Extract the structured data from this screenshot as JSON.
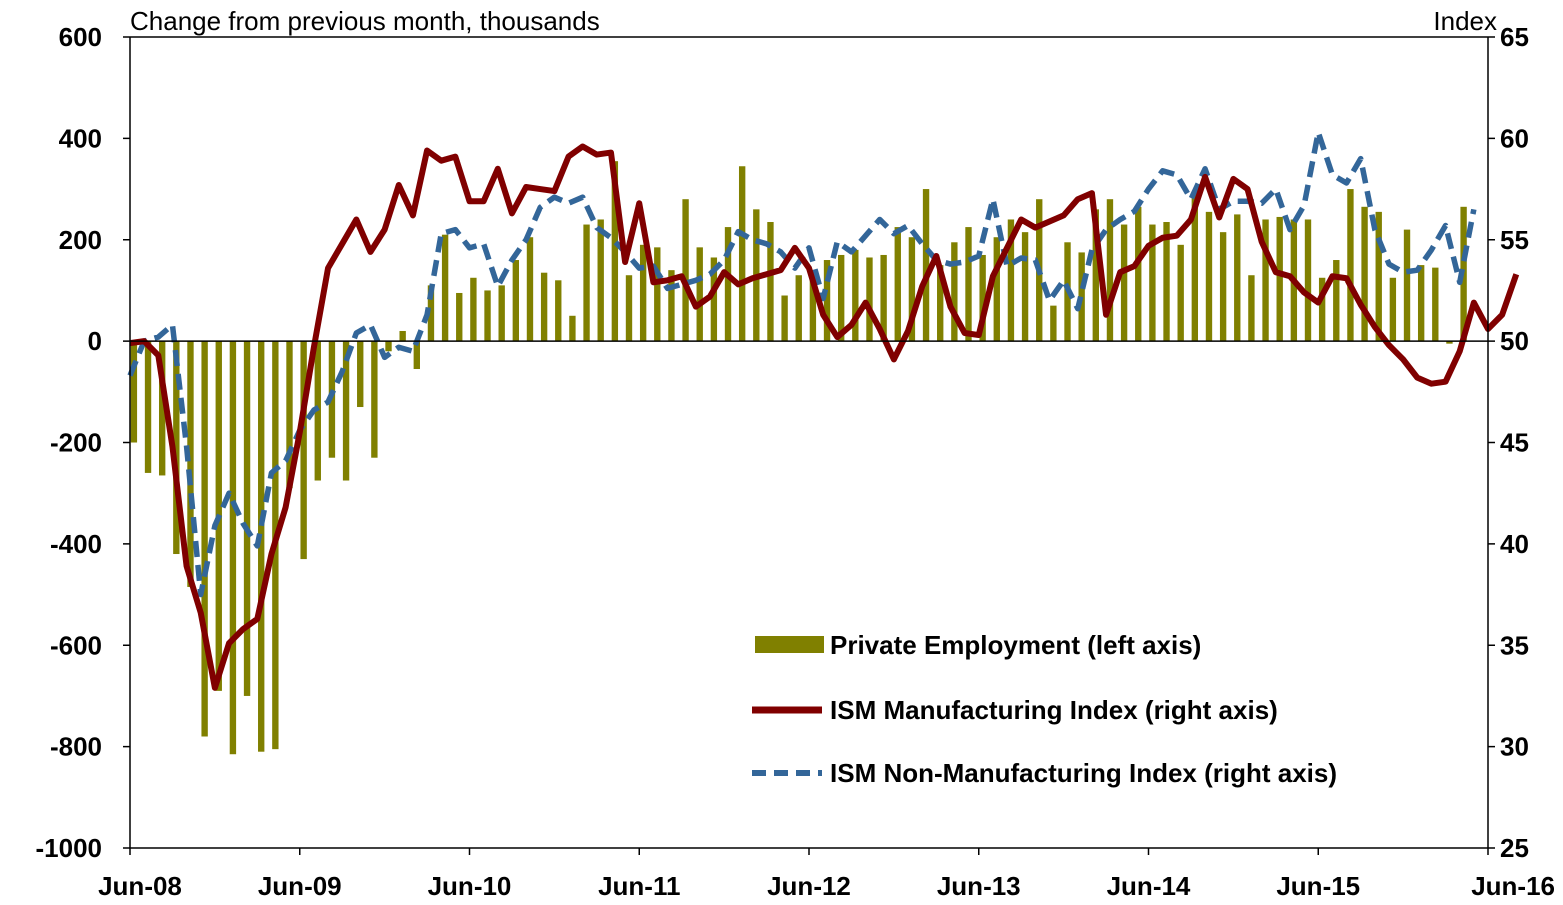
{
  "chart_data": {
    "type": "bar+line",
    "left_axis_label": "Change from previous month, thousands",
    "right_axis_label": "Index",
    "left_ylim": [
      -1000,
      600
    ],
    "right_ylim": [
      25,
      65
    ],
    "left_ticks": [
      "600",
      "400",
      "200",
      "0",
      "-200",
      "-400",
      "-600",
      "-800",
      "-1000"
    ],
    "right_ticks": [
      "65",
      "60",
      "55",
      "50",
      "45",
      "40",
      "35",
      "30",
      "25"
    ],
    "x_ticks": [
      "Jun-08",
      "Jun-09",
      "Jun-10",
      "Jun-11",
      "Jun-12",
      "Jun-13",
      "Jun-14",
      "Jun-15",
      "Jun-16"
    ],
    "grid": false,
    "legend_position": "bottom-right",
    "series": [
      {
        "name": "Private Employment (left axis)",
        "type": "bar",
        "axis": "left",
        "color": "#808000",
        "values": [
          -200,
          -260,
          -265,
          -420,
          -485,
          -780,
          -690,
          -815,
          -700,
          -810,
          -805,
          -290,
          -430,
          -275,
          -230,
          -275,
          -130,
          -230,
          -20,
          20,
          -55,
          110,
          210,
          95,
          125,
          100,
          110,
          160,
          205,
          135,
          120,
          50,
          230,
          240,
          355,
          130,
          190,
          185,
          140,
          280,
          185,
          165,
          225,
          345,
          260,
          235,
          90,
          130,
          130,
          160,
          170,
          180,
          165,
          170,
          225,
          205,
          300,
          150,
          195,
          225,
          170,
          205,
          240,
          215,
          280,
          70,
          195,
          175,
          260,
          280,
          230,
          265,
          230,
          235,
          190,
          290,
          255,
          215,
          250,
          130,
          240,
          245,
          240,
          240,
          125,
          160,
          300,
          265,
          255,
          125,
          220,
          150,
          145,
          -5,
          265
        ],
        "color_hint": "olive"
      },
      {
        "name": "ISM Manufacturing Index (right axis)",
        "type": "line",
        "axis": "right",
        "color": "#800000",
        "values": [
          49.9,
          50.0,
          49.3,
          44.8,
          38.9,
          36.6,
          32.9,
          35.1,
          35.8,
          36.3,
          39.5,
          41.8,
          45.5,
          49.7,
          53.6,
          54.8,
          56.0,
          54.4,
          55.5,
          57.7,
          56.2,
          59.4,
          58.9,
          59.1,
          56.9,
          56.9,
          58.5,
          56.3,
          57.6,
          57.5,
          57.4,
          59.1,
          59.6,
          59.2,
          59.3,
          53.9,
          56.8,
          52.9,
          53.0,
          53.2,
          51.7,
          52.2,
          53.4,
          52.8,
          53.1,
          53.3,
          53.5,
          54.6,
          53.6,
          51.3,
          50.2,
          50.8,
          51.9,
          50.6,
          49.1,
          50.5,
          52.7,
          54.2,
          51.7,
          50.4,
          50.3,
          53.2,
          54.6,
          56.0,
          55.6,
          55.9,
          56.2,
          57.0,
          57.3,
          51.3,
          53.4,
          53.7,
          54.7,
          55.1,
          55.2,
          56.0,
          58.1,
          56.1,
          58.0,
          57.5,
          54.9,
          53.4,
          53.2,
          52.4,
          51.9,
          53.2,
          53.1,
          51.8,
          50.7,
          49.8,
          49.1,
          48.2,
          47.9,
          48.0,
          49.5,
          51.9,
          50.6,
          51.3,
          53.3
        ],
        "style": "solid"
      },
      {
        "name": "ISM Non-Manufacturing Index (right axis)",
        "type": "line",
        "axis": "right",
        "color": "#336699",
        "values": [
          48.3,
          50.0,
          50.2,
          50.8,
          44.8,
          37.5,
          40.9,
          42.5,
          41.0,
          39.9,
          43.5,
          44.1,
          45.6,
          46.6,
          47.0,
          48.5,
          50.4,
          50.8,
          49.2,
          49.7,
          49.5,
          51.3,
          55.3,
          55.5,
          54.6,
          54.8,
          52.7,
          54.0,
          55.0,
          56.6,
          57.1,
          56.8,
          57.1,
          55.6,
          55.1,
          54.4,
          53.6,
          53.7,
          52.6,
          52.8,
          53.0,
          53.3,
          54.0,
          55.4,
          55.0,
          54.8,
          54.4,
          53.6,
          54.6,
          52.1,
          54.9,
          54.4,
          55.2,
          56.0,
          55.3,
          55.7,
          54.8,
          54.0,
          53.8,
          53.9,
          54.2,
          57.0,
          53.7,
          54.1,
          54.0,
          52.0,
          53.0,
          51.6,
          54.5,
          55.5,
          56.0,
          56.4,
          57.5,
          58.4,
          58.2,
          57.0,
          58.5,
          56.5,
          56.9,
          56.9,
          56.8,
          57.5,
          55.5,
          56.7,
          60.3,
          58.2,
          57.8,
          59.0,
          55.5,
          53.8,
          53.4,
          53.5,
          54.5,
          55.7,
          52.9,
          56.5
        ],
        "style": "dashed"
      }
    ]
  }
}
